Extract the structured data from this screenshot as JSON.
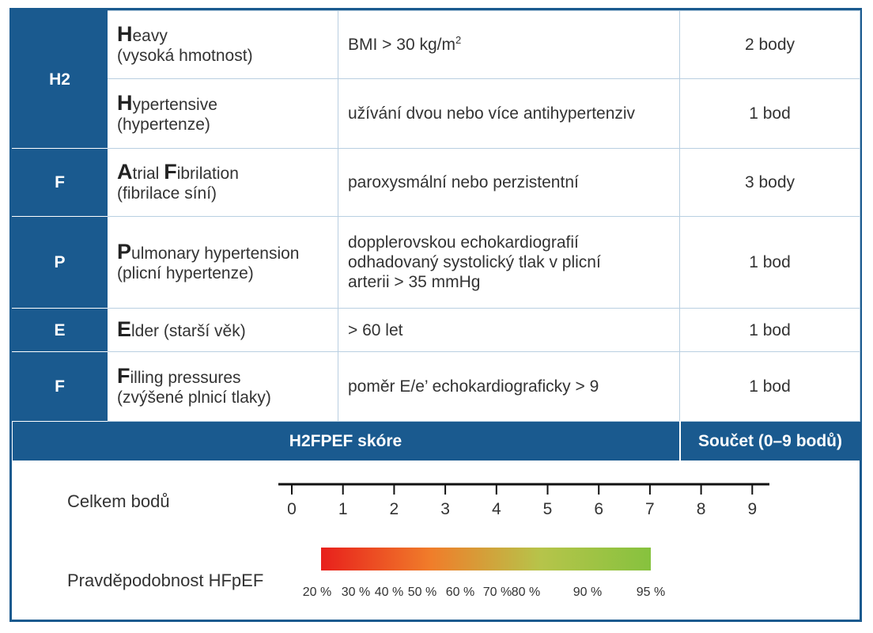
{
  "rows": [
    {
      "code": "H2",
      "cap": "H",
      "name_rest": "eavy",
      "czech": "(vysoká hmotnost)",
      "criterion": "BMI > 30 kg/m",
      "criterion_sup": "2",
      "points": "2 body"
    },
    {
      "code": "",
      "cap": "H",
      "name_rest": "ypertensive",
      "czech": "(hypertenze)",
      "criterion": "užívání dvou nebo více antihypertenziv",
      "points": "1 bod"
    },
    {
      "code": "F",
      "cap": "A",
      "name_rest": "trial ",
      "cap2": "F",
      "name_rest2": "ibrilation",
      "czech": "(fibrilace síní)",
      "criterion": "paroxysmální nebo perzistentní",
      "points": "3 body"
    },
    {
      "code": "P",
      "cap": "P",
      "name_rest": "ulmonary hypertension",
      "czech": "(plicní hypertenze)",
      "criterion_lines": [
        "dopplerovskou echokardiografií",
        "odhadovaný systolický tlak v plicní",
        "arterii > 35 mmHg"
      ],
      "points": "1 bod"
    },
    {
      "code": "E",
      "cap": "E",
      "name_rest": "lder (starší věk)",
      "criterion": "> 60 let",
      "points": "1 bod"
    },
    {
      "code": "F",
      "cap": "F",
      "name_rest": "illing pressures",
      "czech": "(zvýšené plnicí tlaky)",
      "criterion": "poměr E/e’ echokardiograficky > 9",
      "points": "1 bod"
    }
  ],
  "summary": {
    "score_label": "H2FPEF skóre",
    "sum_label": "Součet (0–9 bodů)"
  },
  "scale": {
    "points_label": "Celkem bodů",
    "probability_label": "Pravděpodobnost HFpEF",
    "ticks": [
      "0",
      "1",
      "2",
      "3",
      "4",
      "5",
      "6",
      "7",
      "8",
      "9"
    ],
    "prob_labels": [
      "20 %",
      "30 %",
      "40 %",
      "50 %",
      "60 %",
      "70 %",
      "80 %",
      "90 %",
      "95 %"
    ],
    "prob_points": [
      0,
      1,
      2,
      3,
      4,
      5,
      6,
      7,
      9
    ],
    "gradient_colors": [
      "#e8201c",
      "#f07d2a",
      "#b6c44a",
      "#86c23e"
    ]
  }
}
